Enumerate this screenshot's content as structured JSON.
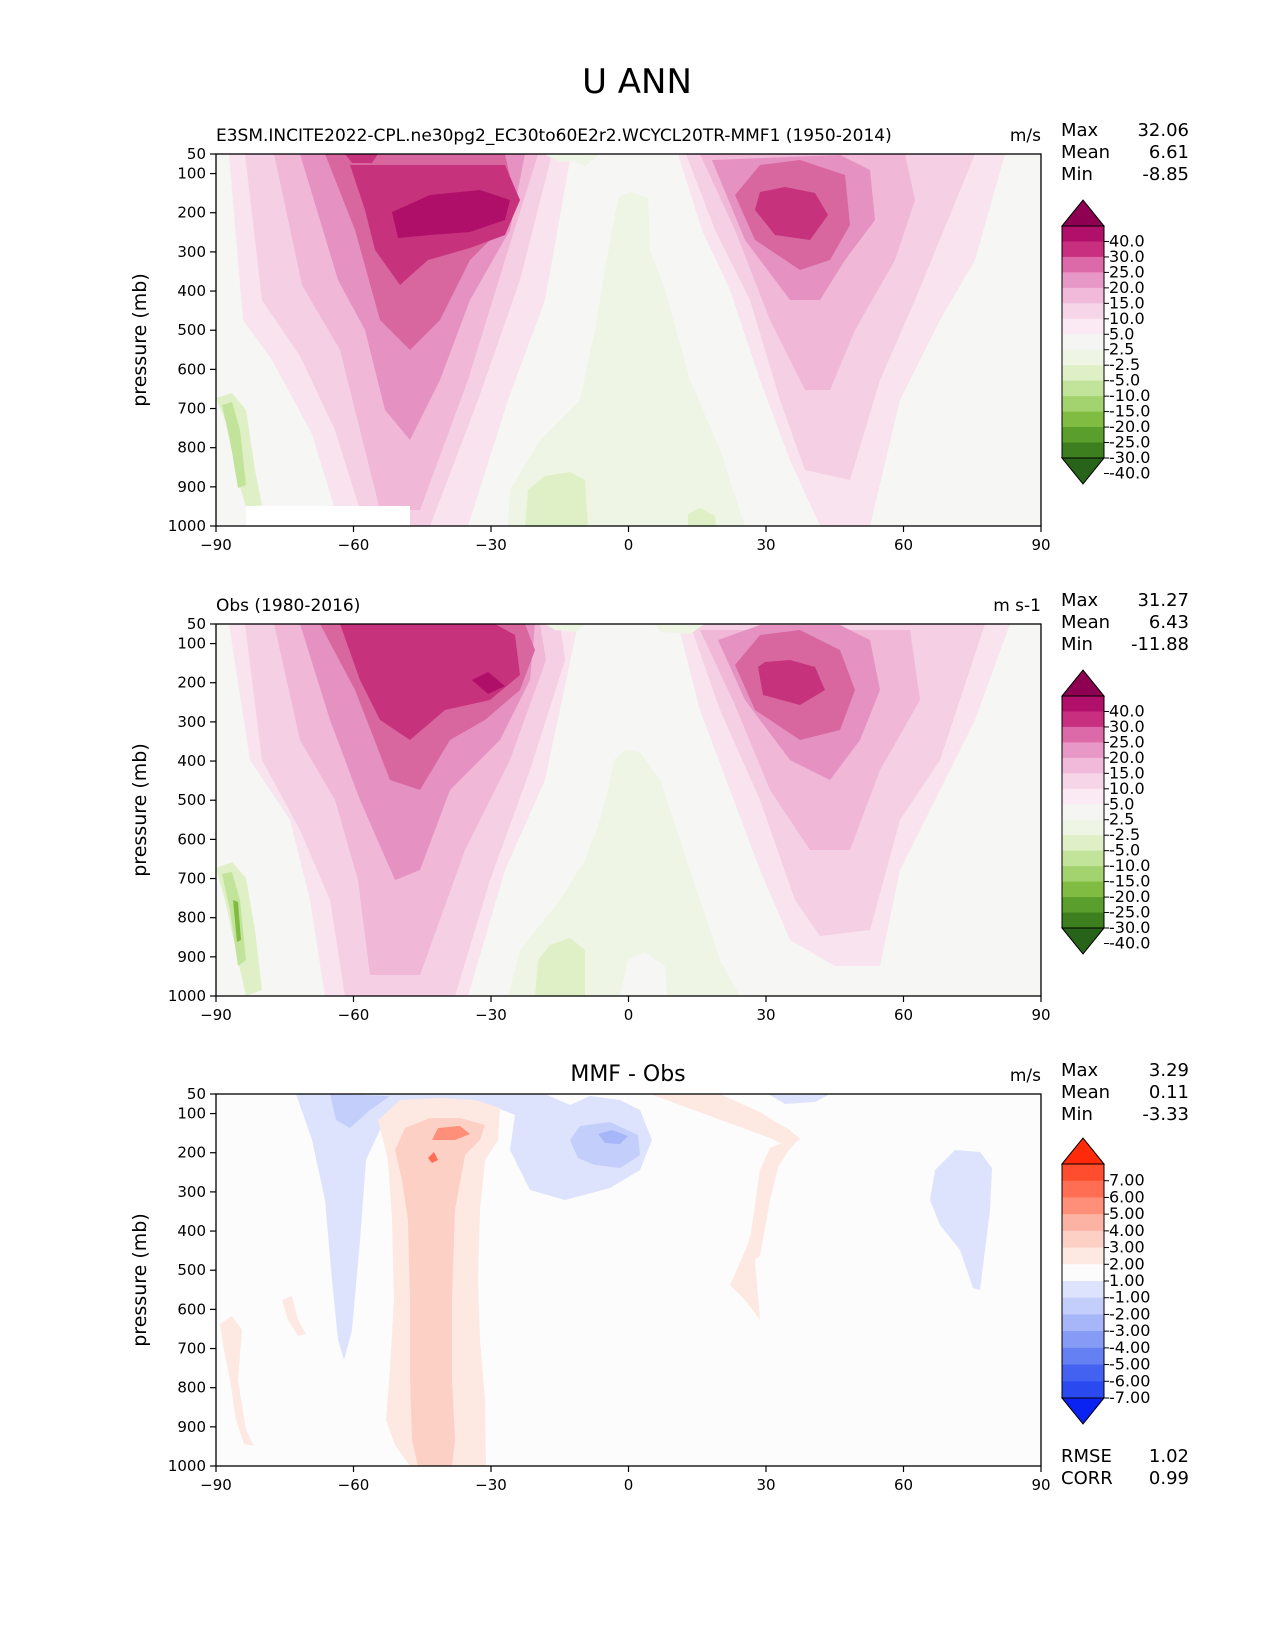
{
  "figure": {
    "title": "U ANN"
  },
  "chart_data": [
    {
      "type": "heatmap",
      "panel": "model",
      "title": "",
      "left_title": "E3SM.INCITE2022-CPL.ne30pg2_EC30to60E2r2.WCYCL20TR-MMF1 (1950-2014)",
      "units": "m/s",
      "xlabel": "",
      "ylabel": "pressure (mb)",
      "xlim": [
        -90,
        90
      ],
      "ylim": [
        1000,
        50
      ],
      "x_ticks": [
        "−90",
        "−60",
        "−30",
        "0",
        "30",
        "60",
        "90"
      ],
      "y_ticks": [
        "50",
        "100",
        "200",
        "300",
        "400",
        "500",
        "600",
        "700",
        "800",
        "900",
        "1000"
      ],
      "stats": [
        {
          "label": "Max",
          "value": "32.06"
        },
        {
          "label": "Mean",
          "value": "6.61"
        },
        {
          "label": "Min",
          "value": "-8.85"
        }
      ],
      "colorbar": {
        "labels": [
          "40.0",
          "30.0",
          "25.0",
          "20.0",
          "15.0",
          "10.0",
          "5.0",
          "2.5",
          "-2.5",
          "-5.0",
          "-10.0",
          "-15.0",
          "-20.0",
          "-25.0",
          "-30.0",
          "-40.0"
        ],
        "colors": [
          "#8e0152",
          "#b0106a",
          "#c8307f",
          "#dc6aa8",
          "#e898c6",
          "#f1b9da",
          "#f7d5e9",
          "#fbeaf3",
          "#f5f5f3",
          "#eef5e4",
          "#dff0c7",
          "#c2e39a",
          "#a2d36e",
          "#7fbc41",
          "#5a9f2c",
          "#3d7f1e",
          "#276419"
        ]
      },
      "features": [
        {
          "name": "southern-jet",
          "lon": -45,
          "p": 200,
          "value": 32.06
        },
        {
          "name": "northern-jet",
          "lon": 35,
          "p": 200,
          "value": 28
        },
        {
          "name": "tropical-easterlies",
          "lon": -5,
          "p": 500,
          "value": -4
        },
        {
          "name": "antarctic-surface-easterlies",
          "lon": -87,
          "p": 800,
          "value": -8.85
        }
      ]
    },
    {
      "type": "heatmap",
      "panel": "obs",
      "title": "",
      "left_title": "Obs (1980-2016)",
      "units": "m s-1",
      "xlabel": "",
      "ylabel": "pressure (mb)",
      "xlim": [
        -90,
        90
      ],
      "ylim": [
        1000,
        50
      ],
      "x_ticks": [
        "−90",
        "−60",
        "−30",
        "0",
        "30",
        "60",
        "90"
      ],
      "y_ticks": [
        "50",
        "100",
        "200",
        "300",
        "400",
        "500",
        "600",
        "700",
        "800",
        "900",
        "1000"
      ],
      "stats": [
        {
          "label": "Max",
          "value": "31.27"
        },
        {
          "label": "Mean",
          "value": "6.43"
        },
        {
          "label": "Min",
          "value": "-11.88"
        }
      ],
      "colorbar": {
        "labels": [
          "40.0",
          "30.0",
          "25.0",
          "20.0",
          "15.0",
          "10.0",
          "5.0",
          "2.5",
          "-2.5",
          "-5.0",
          "-10.0",
          "-15.0",
          "-20.0",
          "-25.0",
          "-30.0",
          "-40.0"
        ],
        "colors": [
          "#8e0152",
          "#b0106a",
          "#c8307f",
          "#dc6aa8",
          "#e898c6",
          "#f1b9da",
          "#f7d5e9",
          "#fbeaf3",
          "#f5f5f3",
          "#eef5e4",
          "#dff0c7",
          "#c2e39a",
          "#a2d36e",
          "#7fbc41",
          "#5a9f2c",
          "#3d7f1e",
          "#276419"
        ]
      },
      "features": [
        {
          "name": "southern-jet",
          "lon": -35,
          "p": 200,
          "value": 31.27
        },
        {
          "name": "northern-jet",
          "lon": 35,
          "p": 200,
          "value": 28
        },
        {
          "name": "tropical-easterlies",
          "lon": -10,
          "p": 550,
          "value": -4
        },
        {
          "name": "antarctic-surface-easterlies",
          "lon": -85,
          "p": 820,
          "value": -11.88
        }
      ]
    },
    {
      "type": "heatmap",
      "panel": "diff",
      "title": "MMF - Obs",
      "left_title": "",
      "units": "m/s",
      "xlabel": "",
      "ylabel": "pressure (mb)",
      "xlim": [
        -90,
        90
      ],
      "ylim": [
        1000,
        50
      ],
      "x_ticks": [
        "−90",
        "−60",
        "−30",
        "0",
        "30",
        "60",
        "90"
      ],
      "y_ticks": [
        "50",
        "100",
        "200",
        "300",
        "400",
        "500",
        "600",
        "700",
        "800",
        "900",
        "1000"
      ],
      "stats": [
        {
          "label": "Max",
          "value": "3.29"
        },
        {
          "label": "Mean",
          "value": "0.11"
        },
        {
          "label": "Min",
          "value": "-3.33"
        }
      ],
      "bottom_stats": [
        {
          "label": "RMSE",
          "value": "1.02"
        },
        {
          "label": "CORR",
          "value": "0.99"
        }
      ],
      "colorbar": {
        "labels": [
          "7.00",
          "6.00",
          "5.00",
          "4.00",
          "3.00",
          "2.00",
          "1.00",
          "-1.00",
          "-2.00",
          "-3.00",
          "-4.00",
          "-5.00",
          "-6.00",
          "-7.00"
        ],
        "colors": [
          "#ff2a0a",
          "#ff4d2e",
          "#ff6e52",
          "#ff8f78",
          "#fdb3a3",
          "#fdd0c6",
          "#fde8e2",
          "#fcfcfc",
          "#dde3fd",
          "#c3cefb",
          "#a6b6f8",
          "#869bf6",
          "#6580f3",
          "#4462f1",
          "#2a4af0",
          "#0a22f2"
        ]
      },
      "features": [
        {
          "name": "southern-midlat-positive",
          "lon": -42,
          "p": 150,
          "value": 3.29
        },
        {
          "name": "equatorial-negative",
          "lon": -3,
          "p": 150,
          "value": -3.33
        },
        {
          "name": "southern-negative-band",
          "lon": -62,
          "p": 300,
          "value": -1.5
        },
        {
          "name": "northern-positive-band",
          "lon": 25,
          "p": 250,
          "value": 1.5
        },
        {
          "name": "northern-polar-negative",
          "lon": 75,
          "p": 350,
          "value": -1.5
        }
      ]
    }
  ]
}
